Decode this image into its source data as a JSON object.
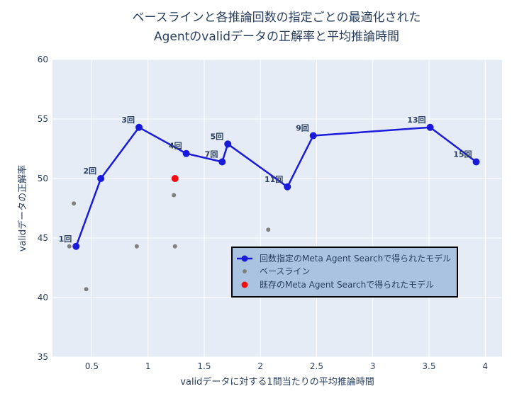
{
  "chart_data": {
    "type": "scatter",
    "title_lines": [
      "ベースラインと各推論回数の指定ごとの最適化された",
      "Agentのvalidデータの正解率と平均推論時間"
    ],
    "xlabel": "validデータに対する1問当たりの平均推論時間",
    "ylabel": "validデータの正解率",
    "xlim": [
      0.15,
      4.15
    ],
    "ylim": [
      35,
      60
    ],
    "xticks": [
      0.5,
      1,
      1.5,
      2,
      2.5,
      3,
      3.5,
      4
    ],
    "yticks": [
      35,
      40,
      45,
      50,
      55,
      60
    ],
    "grid": true,
    "legend_position": "bottom-right",
    "colors": {
      "plot_bg": "#e5ecf6",
      "grid": "#ffffff",
      "line_series": "#1a1adb",
      "baseline": "#808080",
      "existing": "#ee1111"
    },
    "series": [
      {
        "name": "回数指定のMeta Agent Searchで得られたモデル",
        "mode": "lines+markers",
        "points": [
          {
            "x": 0.36,
            "y": 44.3,
            "label": "1回"
          },
          {
            "x": 0.58,
            "y": 50.0,
            "label": "2回"
          },
          {
            "x": 0.92,
            "y": 54.3,
            "label": "3回"
          },
          {
            "x": 1.34,
            "y": 52.1,
            "label": "4回"
          },
          {
            "x": 1.66,
            "y": 51.4,
            "label": "7回"
          },
          {
            "x": 1.71,
            "y": 52.9,
            "label": "5回"
          },
          {
            "x": 2.24,
            "y": 49.3,
            "label": "11回"
          },
          {
            "x": 2.47,
            "y": 53.6,
            "label": "9回"
          },
          {
            "x": 3.51,
            "y": 54.3,
            "label": "13回"
          },
          {
            "x": 3.92,
            "y": 51.4,
            "label": "15回"
          }
        ]
      },
      {
        "name": "ベースライン",
        "mode": "markers",
        "points": [
          {
            "x": 0.3,
            "y": 44.3
          },
          {
            "x": 0.34,
            "y": 47.9
          },
          {
            "x": 0.45,
            "y": 40.7
          },
          {
            "x": 0.9,
            "y": 44.3
          },
          {
            "x": 1.23,
            "y": 48.6
          },
          {
            "x": 1.24,
            "y": 44.3
          },
          {
            "x": 2.07,
            "y": 45.7
          }
        ]
      },
      {
        "name": "既存のMeta Agent Searchで得られたモデル",
        "mode": "markers",
        "points": [
          {
            "x": 1.24,
            "y": 50.0
          }
        ]
      }
    ]
  }
}
